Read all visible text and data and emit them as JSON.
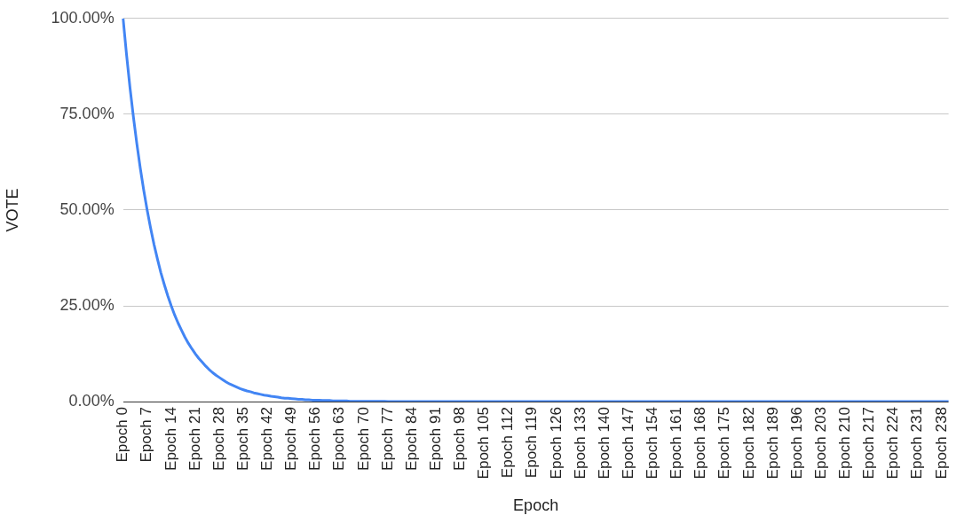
{
  "chart_data": {
    "type": "line",
    "xlabel": "Epoch",
    "ylabel": "VOTE",
    "categories": [
      "Epoch 0",
      null,
      null,
      null,
      null,
      null,
      null,
      "Epoch 7",
      null,
      null,
      null,
      null,
      null,
      null,
      "Epoch 14",
      null,
      null,
      null,
      null,
      null,
      null,
      "Epoch 21",
      null,
      null,
      null,
      null,
      null,
      null,
      "Epoch 28",
      null,
      null,
      null,
      null,
      null,
      null,
      "Epoch 35",
      null,
      null,
      null,
      null,
      null,
      null,
      "Epoch 42",
      null,
      null,
      null,
      null,
      null,
      null,
      "Epoch 49",
      null,
      null,
      null,
      null,
      null,
      null,
      "Epoch 56",
      null,
      null,
      null,
      null,
      null,
      null,
      "Epoch 63",
      null,
      null,
      null,
      null,
      null,
      null,
      "Epoch 70",
      null,
      null,
      null,
      null,
      null,
      null,
      "Epoch 77",
      null,
      null,
      null,
      null,
      null,
      null,
      "Epoch 84",
      null,
      null,
      null,
      null,
      null,
      null,
      "Epoch 91",
      null,
      null,
      null,
      null,
      null,
      null,
      "Epoch 98",
      null,
      null,
      null,
      null,
      null,
      null,
      "Epoch 105",
      null,
      null,
      null,
      null,
      null,
      null,
      "Epoch 112",
      null,
      null,
      null,
      null,
      null,
      null,
      "Epoch 119",
      null,
      null,
      null,
      null,
      null,
      null,
      "Epoch 126",
      null,
      null,
      null,
      null,
      null,
      null,
      "Epoch 133",
      null,
      null,
      null,
      null,
      null,
      null,
      "Epoch 140",
      null,
      null,
      null,
      null,
      null,
      null,
      "Epoch 147",
      null,
      null,
      null,
      null,
      null,
      null,
      "Epoch 154",
      null,
      null,
      null,
      null,
      null,
      null,
      "Epoch 161",
      null,
      null,
      null,
      null,
      null,
      null,
      "Epoch 168",
      null,
      null,
      null,
      null,
      null,
      null,
      "Epoch 175",
      null,
      null,
      null,
      null,
      null,
      null,
      "Epoch 182",
      null,
      null,
      null,
      null,
      null,
      null,
      "Epoch 189",
      null,
      null,
      null,
      null,
      null,
      null,
      "Epoch 196",
      null,
      null,
      null,
      null,
      null,
      null,
      "Epoch 203",
      null,
      null,
      null,
      null,
      null,
      null,
      "Epoch 210",
      null,
      null,
      null,
      null,
      null,
      null,
      "Epoch 217",
      null,
      null,
      null,
      null,
      null,
      null,
      "Epoch 224",
      null,
      null,
      null,
      null,
      null,
      null,
      "Epoch 231",
      null,
      null,
      null,
      null,
      null,
      null,
      "Epoch 238",
      null,
      null
    ],
    "series": [
      {
        "color": "#4285f4",
        "values": [
          100,
          90.6,
          82.0,
          74.3,
          67.3,
          60.9,
          55.2,
          50,
          45.3,
          41.0,
          37.2,
          33.6,
          30.5,
          27.6,
          25,
          22.6,
          20.5,
          18.6,
          16.8,
          15.2,
          13.8,
          12.5,
          11.3,
          10.3,
          9.3,
          8.4,
          7.6,
          6.9,
          6.3,
          5.7,
          5.1,
          4.6,
          4.2,
          3.8,
          3.4,
          3.1,
          2.8,
          2.6,
          2.3,
          2.1,
          1.9,
          1.7,
          1.6,
          1.4,
          1.3,
          1.2,
          1.0,
          0.9,
          0.9,
          0.8,
          0.7,
          0.6,
          0.6,
          0.5,
          0.5,
          0.4,
          0.4,
          0.4,
          0.3,
          0.3,
          0.3,
          0.2,
          0.2,
          0.2,
          0.2,
          0.2,
          0.1,
          0.1,
          0.1,
          0.1,
          0.1,
          0.1,
          0.1,
          0.1,
          0.1,
          0.1,
          0.1,
          0,
          0,
          0,
          0,
          0,
          0,
          0,
          0,
          0,
          0,
          0,
          0,
          0,
          0,
          0,
          0,
          0,
          0,
          0,
          0,
          0,
          0,
          0,
          0,
          0,
          0,
          0,
          0,
          0,
          0,
          0,
          0,
          0,
          0,
          0,
          0,
          0,
          0,
          0,
          0,
          0,
          0,
          0,
          0,
          0,
          0,
          0,
          0,
          0,
          0,
          0,
          0,
          0,
          0,
          0,
          0,
          0,
          0,
          0,
          0,
          0,
          0,
          0,
          0,
          0,
          0,
          0,
          0,
          0,
          0,
          0,
          0,
          0,
          0,
          0,
          0,
          0,
          0,
          0,
          0,
          0,
          0,
          0,
          0,
          0,
          0,
          0,
          0,
          0,
          0,
          0,
          0,
          0,
          0,
          0,
          0,
          0,
          0,
          0,
          0,
          0,
          0,
          0,
          0,
          0,
          0,
          0,
          0,
          0,
          0,
          0,
          0,
          0,
          0,
          0,
          0,
          0,
          0,
          0,
          0,
          0,
          0,
          0,
          0,
          0,
          0,
          0,
          0,
          0,
          0,
          0,
          0,
          0,
          0,
          0,
          0,
          0,
          0,
          0,
          0,
          0,
          0,
          0,
          0,
          0,
          0,
          0,
          0,
          0,
          0,
          0,
          0,
          0,
          0,
          0,
          0,
          0,
          0,
          0,
          0,
          0,
          0,
          0,
          0
        ]
      }
    ],
    "ylim": [
      0,
      100
    ],
    "yticks": [
      {
        "value": 0,
        "label": "0.00%"
      },
      {
        "value": 25,
        "label": "25.00%"
      },
      {
        "value": 50,
        "label": "50.00%"
      },
      {
        "value": 75,
        "label": "75.00%"
      },
      {
        "value": 100,
        "label": "100.00%"
      }
    ],
    "grid": "y",
    "legend": false,
    "marker": "none",
    "line_style": "solid"
  }
}
